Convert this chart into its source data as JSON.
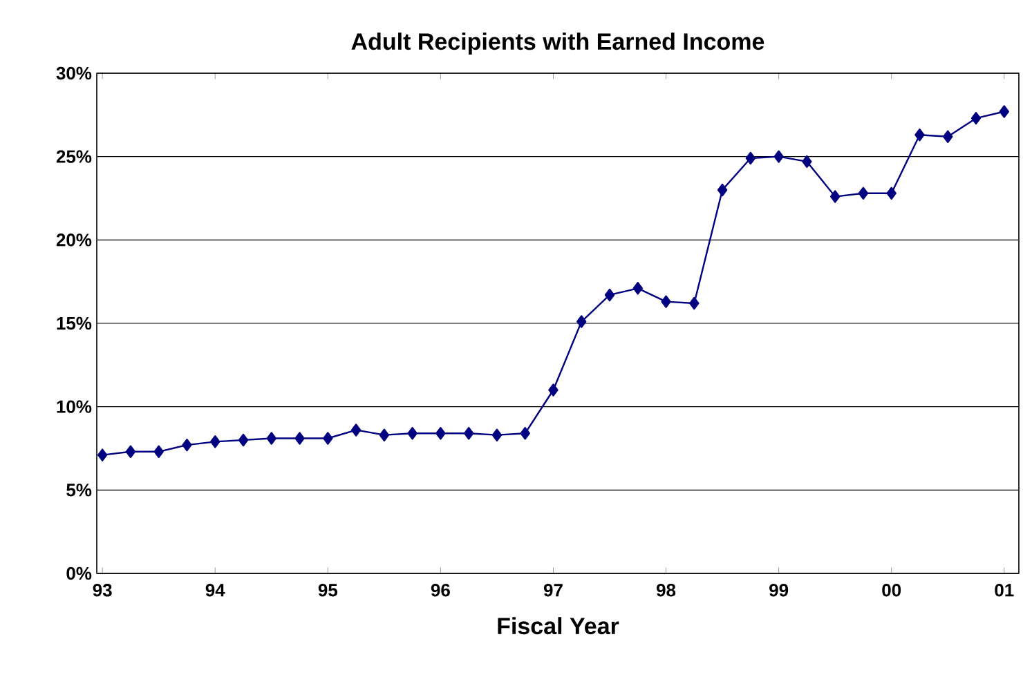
{
  "chart_data": {
    "type": "line",
    "title": "Adult Recipients with Earned Income",
    "xlabel": "Fiscal Year",
    "x": [
      1993,
      1993.25,
      1993.5,
      1993.75,
      1994,
      1994.25,
      1994.5,
      1994.75,
      1995,
      1995.25,
      1995.5,
      1995.75,
      1996,
      1996.25,
      1996.5,
      1996.75,
      1997,
      1997.25,
      1997.5,
      1997.75,
      1998,
      1998.25,
      1998.5,
      1998.75,
      1999,
      1999.25,
      1999.5,
      1999.75,
      2000,
      2000.25,
      2000.5,
      2000.75,
      2001
    ],
    "series": [
      {
        "color": "#000080",
        "values": [
          7.1,
          7.3,
          7.3,
          7.7,
          7.9,
          8.0,
          8.1,
          8.1,
          8.1,
          8.6,
          8.3,
          8.4,
          8.4,
          8.4,
          8.3,
          8.4,
          11.0,
          15.1,
          16.7,
          17.1,
          16.3,
          16.2,
          23.0,
          24.9,
          25.0,
          24.7,
          22.6,
          22.8,
          22.8,
          26.3,
          26.2,
          27.3,
          27.7
        ]
      }
    ],
    "xlim": [
      1992.95,
      2001.13
    ],
    "xticks": [
      {
        "value": 1993,
        "label": "93"
      },
      {
        "value": 1994,
        "label": "94"
      },
      {
        "value": 1995,
        "label": "95"
      },
      {
        "value": 1996,
        "label": "96"
      },
      {
        "value": 1997,
        "label": "97"
      },
      {
        "value": 1998,
        "label": "98"
      },
      {
        "value": 1999,
        "label": "99"
      },
      {
        "value": 2000,
        "label": "00"
      },
      {
        "value": 2001,
        "label": "01"
      }
    ],
    "ylim": [
      0,
      30
    ],
    "yticks": [
      {
        "value": 0,
        "label": "0%"
      },
      {
        "value": 5,
        "label": "5%"
      },
      {
        "value": 10,
        "label": "10%"
      },
      {
        "value": 15,
        "label": "15%"
      },
      {
        "value": 20,
        "label": "20%"
      },
      {
        "value": 25,
        "label": "25%"
      },
      {
        "value": 30,
        "label": "30%"
      }
    ],
    "grid": "y",
    "marker": "diamond",
    "line_style": "solid"
  }
}
